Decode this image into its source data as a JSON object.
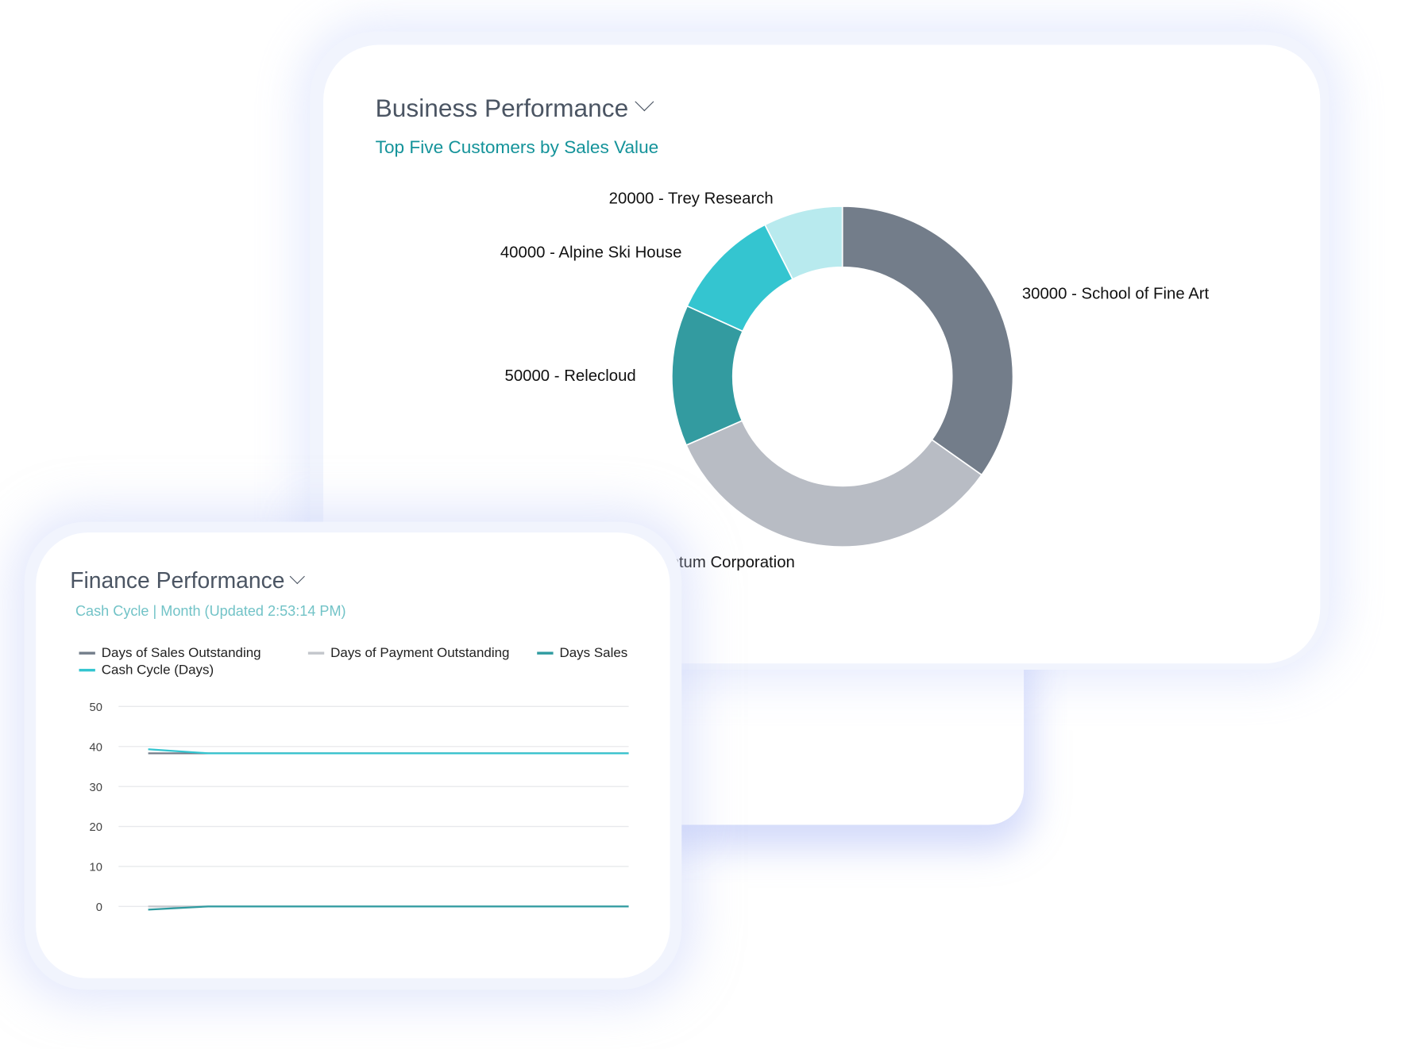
{
  "business": {
    "title": "Business Performance",
    "subtitle": "Top Five Customers by Sales Value",
    "subtitle_color": "#14939a"
  },
  "finance": {
    "title": "Finance Performance",
    "subtitle": "Cash Cycle | Month (Updated  2:53:14 PM)",
    "subtitle_color": "#72c3c7"
  },
  "chart_data": [
    {
      "type": "pie",
      "donut": true,
      "slices": [
        {
          "label": "30000 - School of Fine Art",
          "share_pct": 34.8,
          "color": "#737d8a"
        },
        {
          "label": "ntum Corporation",
          "share_pct": 33.6,
          "color": "#b8bcc4"
        },
        {
          "label": "50000 - Relecloud",
          "share_pct": 13.4,
          "color": "#339ba0"
        },
        {
          "label": "40000 - Alpine Ski House",
          "share_pct": 10.7,
          "color": "#34c5d0"
        },
        {
          "label": "20000 - Trey Research",
          "share_pct": 7.5,
          "color": "#b8eaee"
        }
      ]
    },
    {
      "type": "line",
      "ylim": [
        0,
        50
      ],
      "yticks": [
        "50",
        "40",
        "30",
        "20",
        "10",
        "0"
      ],
      "grid": true,
      "legend_position": "top",
      "series": [
        {
          "name": "Days of Sales Outstanding",
          "color": "#737d8a",
          "values": [
            38.3,
            38.3,
            38.3,
            38.3,
            38.3,
            38.3,
            38.3,
            38.3,
            38.3
          ]
        },
        {
          "name": "Days of Payment Outstanding",
          "color": "#c3c6cc",
          "values": [
            0,
            0,
            0,
            0,
            0,
            0,
            0,
            0,
            0
          ]
        },
        {
          "name": "Days Sales",
          "color": "#2f9ba0",
          "values": [
            -0.8,
            0,
            0,
            0,
            0,
            0,
            0,
            0,
            0
          ]
        },
        {
          "name": "Cash Cycle (Days)",
          "color": "#34c5d0",
          "values": [
            39.3,
            38.3,
            38.3,
            38.3,
            38.3,
            38.3,
            38.3,
            38.3,
            38.3
          ]
        }
      ]
    }
  ]
}
